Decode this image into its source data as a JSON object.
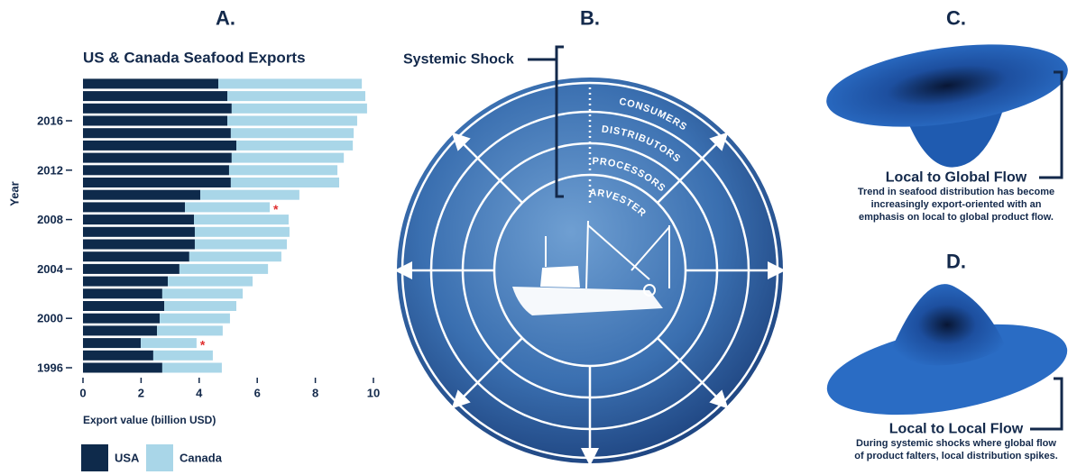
{
  "chart_data": {
    "type": "stacked-barh",
    "panel_label": "A.",
    "title": "US & Canada Seafood Exports",
    "xlabel": "Export value (billion USD)",
    "ylabel": "Year",
    "categories": [
      "1996",
      null,
      null,
      null,
      "2000",
      null,
      null,
      null,
      "2004",
      null,
      null,
      null,
      "2008",
      null,
      null,
      null,
      "2012",
      null,
      null,
      null,
      "2016",
      null,
      null,
      null
    ],
    "series": [
      {
        "name": "USA",
        "color": "#0e2a4b",
        "values": [
          2.73,
          2.42,
          1.99,
          2.55,
          2.64,
          2.8,
          2.73,
          2.92,
          3.32,
          3.66,
          3.85,
          3.85,
          3.82,
          3.51,
          4.04,
          5.09,
          5.03,
          5.12,
          5.28,
          5.09,
          4.97,
          5.12,
          4.97,
          4.66
        ]
      },
      {
        "name": "Canada",
        "color": "#a9d6e8",
        "values": [
          2.05,
          2.05,
          1.92,
          2.26,
          2.42,
          2.48,
          2.77,
          2.92,
          3.05,
          3.17,
          3.17,
          3.26,
          3.26,
          2.92,
          3.41,
          3.73,
          3.73,
          3.86,
          4.01,
          4.23,
          4.47,
          4.66,
          4.75,
          4.94
        ]
      }
    ],
    "annotations": [
      "*",
      "*"
    ],
    "xlim": [
      0,
      10
    ],
    "xticks": [
      0,
      2,
      4,
      6,
      8,
      10
    ]
  },
  "diagram": {
    "label": "B.",
    "shock_label": "Systemic Shock",
    "rings": [
      "HARVESTERS",
      "PROCESSORS",
      "DISTRIBUTORS",
      "CONSUMERS"
    ]
  },
  "flows": [
    {
      "label": "C.",
      "title": "Local to Global Flow",
      "lines": [
        "Trend in seafood distribution has become",
        "increasingly export-oriented with an",
        "emphasis on local to global product flow."
      ]
    },
    {
      "label": "D.",
      "title": "Local to Local Flow",
      "lines": [
        "During systemic shocks where global flow",
        "of product falters, local distribution spikes."
      ]
    }
  ]
}
